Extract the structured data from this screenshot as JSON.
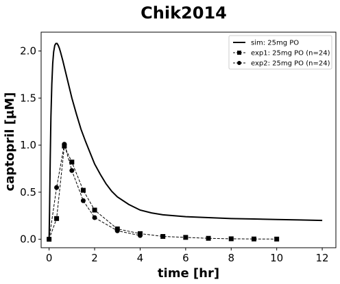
{
  "chart_data": {
    "type": "line",
    "title": "Chik2014",
    "xlabel": "time [hr]",
    "ylabel": "captopril [μM]",
    "xlim": [
      -0.35,
      12.6
    ],
    "ylim": [
      -0.09,
      2.2
    ],
    "x_ticks": [
      0,
      2,
      4,
      6,
      8,
      10,
      12
    ],
    "y_ticks": [
      0.0,
      0.5,
      1.0,
      1.5,
      2.0
    ],
    "x_tick_labels": [
      "0",
      "2",
      "4",
      "6",
      "8",
      "10",
      "12"
    ],
    "y_tick_labels": [
      "0.0",
      "0.5",
      "1.0",
      "1.5",
      "2.0"
    ],
    "grid": false,
    "legend_position": "top-right",
    "series": [
      {
        "name": "sim: 25mg PO",
        "style": "solid",
        "marker": "none",
        "color": "#000000",
        "x": [
          0,
          0.02,
          0.05,
          0.08,
          0.12,
          0.16,
          0.2,
          0.25,
          0.3,
          0.35,
          0.4,
          0.45,
          0.5,
          0.6,
          0.7,
          0.8,
          0.9,
          1.0,
          1.2,
          1.4,
          1.6,
          1.8,
          2.0,
          2.25,
          2.5,
          2.75,
          3.0,
          3.5,
          4.0,
          4.5,
          5.0,
          5.5,
          6.0,
          7.0,
          8.0,
          9.0,
          10.0,
          11.0,
          12.0
        ],
        "y": [
          0.0,
          0.3,
          0.85,
          1.3,
          1.65,
          1.87,
          1.99,
          2.06,
          2.08,
          2.08,
          2.06,
          2.03,
          1.99,
          1.9,
          1.8,
          1.7,
          1.6,
          1.5,
          1.33,
          1.17,
          1.04,
          0.92,
          0.8,
          0.69,
          0.59,
          0.51,
          0.45,
          0.37,
          0.31,
          0.28,
          0.26,
          0.25,
          0.24,
          0.23,
          0.22,
          0.215,
          0.21,
          0.205,
          0.2
        ]
      },
      {
        "name": "exp1: 25mg PO (n=24)",
        "style": "dashed",
        "marker": "square",
        "color": "#000000",
        "x": [
          0,
          0.33,
          0.67,
          1.0,
          1.5,
          2.0,
          3.0,
          4.0,
          5.0,
          6.0,
          7.0,
          8.0,
          9.0,
          10.0
        ],
        "y": [
          0.0,
          0.22,
          0.99,
          0.82,
          0.52,
          0.31,
          0.11,
          0.06,
          0.03,
          0.02,
          0.01,
          0.005,
          0.003,
          0.002
        ]
      },
      {
        "name": "exp2: 25mg PO (n=24)",
        "style": "dashed",
        "marker": "circle",
        "color": "#000000",
        "x": [
          0,
          0.33,
          0.67,
          1.0,
          1.5,
          2.0,
          3.0,
          4.0
        ],
        "y": [
          0.0,
          0.55,
          1.01,
          0.73,
          0.41,
          0.23,
          0.09,
          0.04
        ]
      }
    ]
  }
}
